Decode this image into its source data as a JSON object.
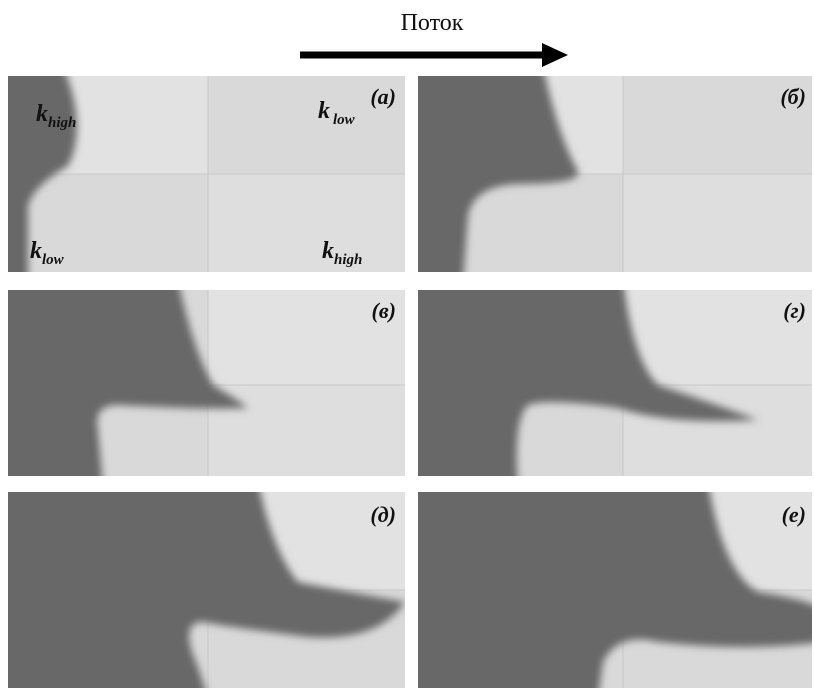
{
  "header": {
    "flow_label": "Поток"
  },
  "panels": [
    {
      "label": "(а)",
      "annotations": [
        {
          "base": "k",
          "sub": "high"
        },
        {
          "base": "k",
          "sub": "low"
        },
        {
          "base": "k",
          "sub": "low"
        },
        {
          "base": "k",
          "sub": "high"
        }
      ]
    },
    {
      "label": "(б)"
    },
    {
      "label": "(в)"
    },
    {
      "label": "(г)"
    },
    {
      "label": "(д)"
    },
    {
      "label": "(е)"
    }
  ]
}
